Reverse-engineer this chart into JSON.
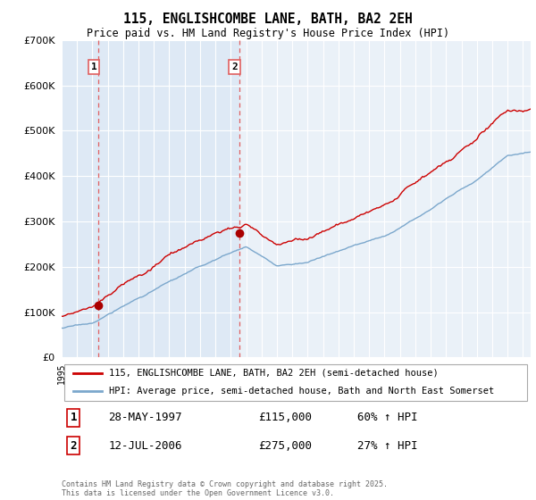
{
  "title": "115, ENGLISHCOMBE LANE, BATH, BA2 2EH",
  "subtitle": "Price paid vs. HM Land Registry's House Price Index (HPI)",
  "property_label": "115, ENGLISHCOMBE LANE, BATH, BA2 2EH (semi-detached house)",
  "hpi_label": "HPI: Average price, semi-detached house, Bath and North East Somerset",
  "sale1_date": "28-MAY-1997",
  "sale1_price": 115000,
  "sale1_note": "60% ↑ HPI",
  "sale2_date": "12-JUL-2006",
  "sale2_price": 275000,
  "sale2_note": "27% ↑ HPI",
  "sale1_year": 1997.41,
  "sale2_year": 2006.54,
  "copyright": "Contains HM Land Registry data © Crown copyright and database right 2025.\nThis data is licensed under the Open Government Licence v3.0.",
  "property_color": "#cc0000",
  "hpi_color": "#7ba7cc",
  "shade_color": "#dce8f5",
  "dashed_color": "#e06060",
  "marker_color": "#aa0000",
  "background_color": "#eaf1f8",
  "ylim": [
    0,
    700000
  ],
  "xlim_start": 1995.0,
  "xlim_end": 2025.5
}
